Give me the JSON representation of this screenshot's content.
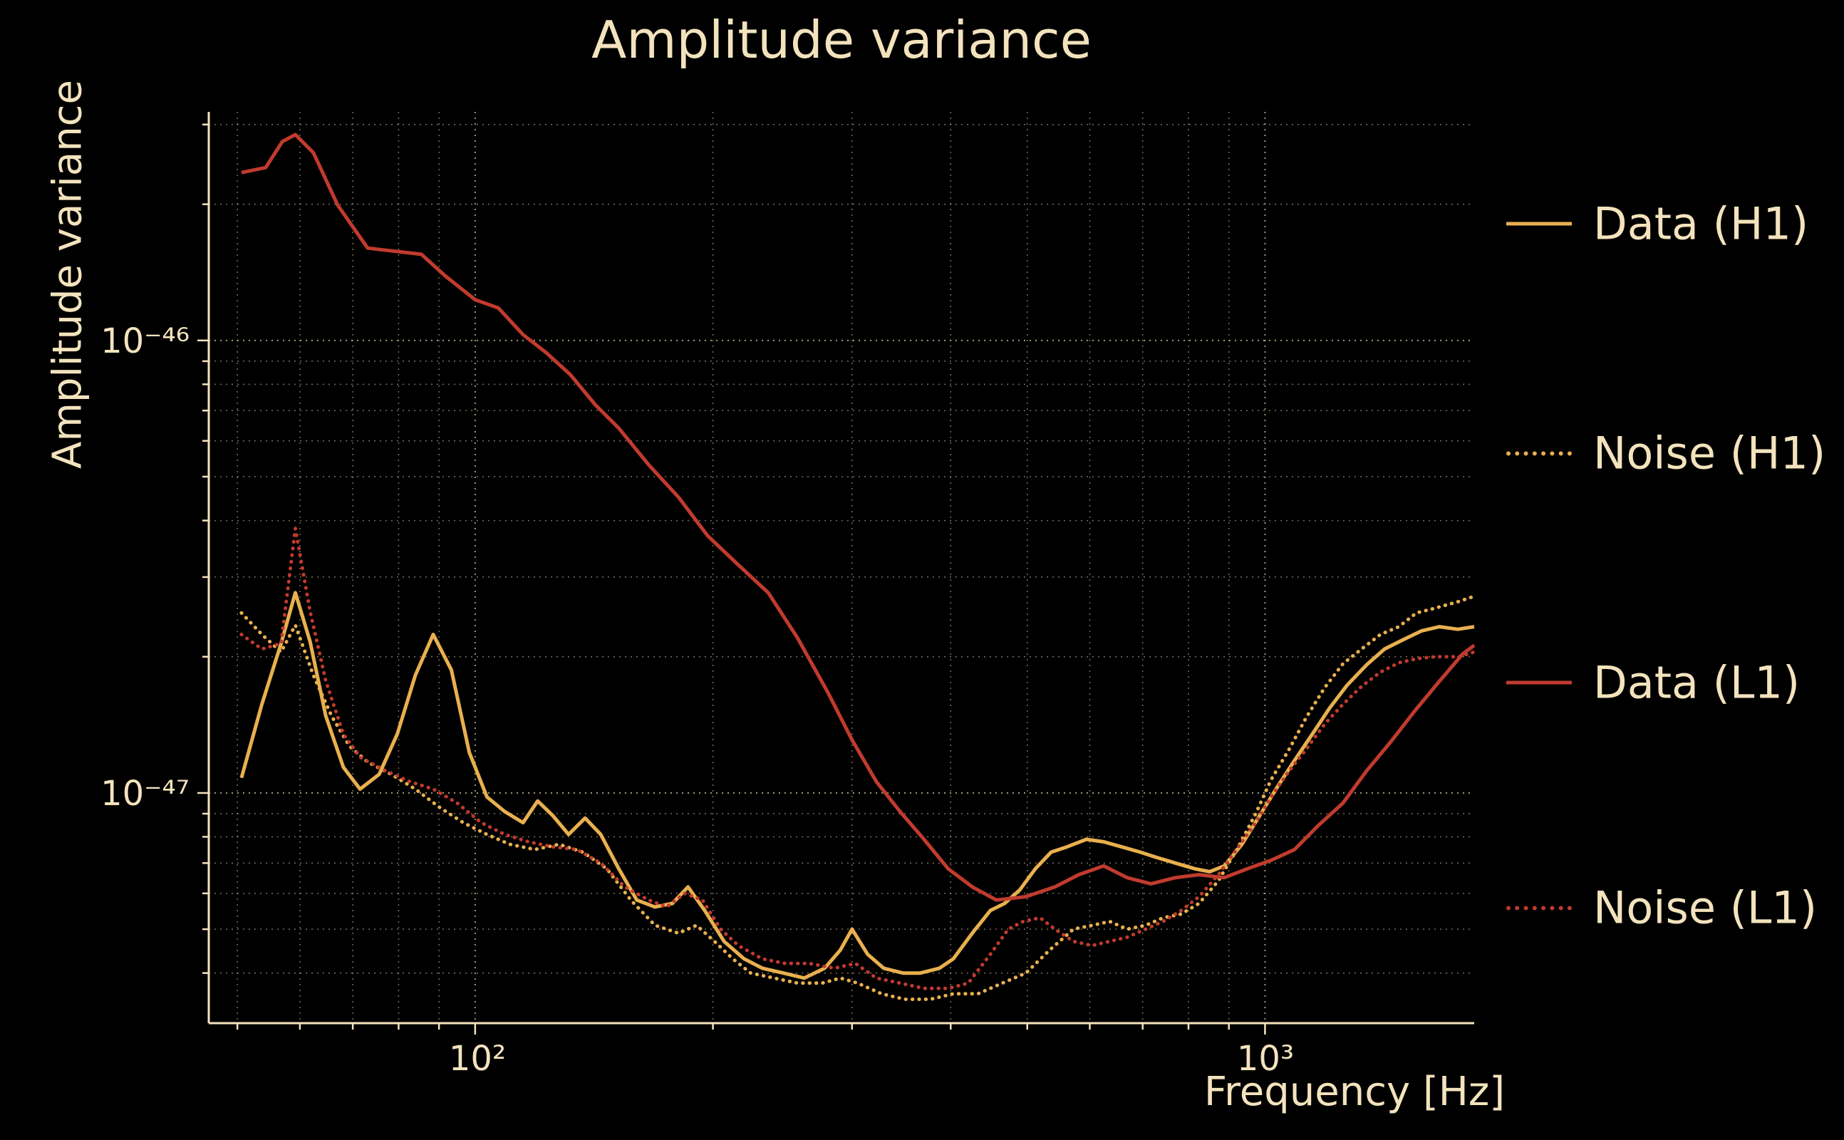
{
  "figure": {
    "background_color": "#000000",
    "text_color": "#f3e3bd"
  },
  "chart_data": {
    "type": "line",
    "title": "Amplitude variance",
    "xlabel": "Frequency [Hz]",
    "ylabel": "Amplitude variance",
    "xscale": "log",
    "yscale": "log",
    "xlim": [
      46,
      1840
    ],
    "ylim": [
      3.1e-48,
      3.2e-46
    ],
    "x_tick_labels": [
      "10²",
      "10³"
    ],
    "x_tick_values": [
      100,
      1000
    ],
    "y_tick_labels": [
      "10⁻⁴⁶",
      "10⁻⁴⁷"
    ],
    "y_tick_values": [
      1e-46,
      1e-47
    ],
    "grid": "major and minor, dotted",
    "legend_position": "right, outside axes, no frame",
    "colors": {
      "background": "#000000",
      "text": "#f3e3bd",
      "h1": "#e8b04e",
      "l1": "#c13b2e",
      "grid": "#d9cba4"
    },
    "series": [
      {
        "id": "data-h1",
        "name": "Data (H1)",
        "color": "#e8b04e",
        "line": "solid",
        "x": [
          50.6,
          53.7,
          56.8,
          59.2,
          61.8,
          64.7,
          68.1,
          71.5,
          75.6,
          79.7,
          84,
          88.5,
          93.3,
          98.3,
          103.5,
          109,
          115,
          120,
          125.5,
          131.3,
          137.8,
          144.2,
          152,
          160.2,
          168.9,
          177.7,
          186,
          195.3,
          206.6,
          219,
          231,
          245.6,
          261,
          277,
          290,
          300,
          314,
          329,
          348,
          366,
          387,
          403,
          426,
          449,
          468,
          489,
          512,
          536,
          561,
          594,
          625,
          659,
          695,
          730,
          770,
          815,
          851,
          888,
          935,
          984,
          1036,
          1090,
          1148,
          1207,
          1270,
          1345,
          1417,
          1495,
          1577,
          1663,
          1754,
          1840
        ],
        "y": [
          1.08e-47,
          1.57e-47,
          2.14e-47,
          2.77e-47,
          2.16e-47,
          1.48e-47,
          1.14e-47,
          1.02e-47,
          1.1e-47,
          1.35e-47,
          1.82e-47,
          2.24e-47,
          1.87e-47,
          1.23e-47,
          9.8e-48,
          9.1e-48,
          8.6e-48,
          9.6e-48,
          8.9e-48,
          8.1e-48,
          8.8e-48,
          8.1e-48,
          6.8e-48,
          5.8e-48,
          5.6e-48,
          5.7e-48,
          6.2e-48,
          5.5e-48,
          4.7e-48,
          4.3e-48,
          4.1e-48,
          4e-48,
          3.9e-48,
          4.1e-48,
          4.5e-48,
          5e-48,
          4.4e-48,
          4.1e-48,
          4e-48,
          4e-48,
          4.1e-48,
          4.3e-48,
          4.9e-48,
          5.5e-48,
          5.7e-48,
          6.1e-48,
          6.8e-48,
          7.4e-48,
          7.6e-48,
          7.9e-48,
          7.8e-48,
          7.6e-48,
          7.4e-48,
          7.2e-48,
          7e-48,
          6.8e-48,
          6.7e-48,
          6.9e-48,
          7.7e-48,
          8.9e-48,
          1.03e-47,
          1.18e-47,
          1.35e-47,
          1.54e-47,
          1.73e-47,
          1.92e-47,
          2.08e-47,
          2.18e-47,
          2.28e-47,
          2.33e-47,
          2.3e-47,
          2.33e-47
        ]
      },
      {
        "id": "noise-h1",
        "name": "Noise (H1)",
        "color": "#e8b04e",
        "line": "dotted",
        "x": [
          50.6,
          53.7,
          56.8,
          59.2,
          62.4,
          65.8,
          69.3,
          73.1,
          78.3,
          84,
          90.1,
          96.6,
          103.5,
          110.6,
          119,
          127.7,
          136.9,
          146.8,
          157.4,
          168.9,
          180.9,
          190.7,
          200.9,
          211.9,
          223.3,
          239,
          256,
          275,
          290,
          305,
          327,
          350,
          377,
          403,
          433,
          465,
          498,
          534,
          572,
          604,
          636,
          669,
          706,
          743,
          783,
          825,
          873,
          925,
          973,
          1018,
          1073,
          1128,
          1190,
          1255,
          1325,
          1400,
          1477,
          1555,
          1640,
          1760,
          1840
        ],
        "y": [
          2.5e-47,
          2.24e-47,
          2.05e-47,
          2.35e-47,
          1.82e-47,
          1.48e-47,
          1.27e-47,
          1.17e-47,
          1.1e-47,
          1.02e-47,
          9.3e-48,
          8.6e-48,
          8.1e-48,
          7.7e-48,
          7.5e-48,
          7.7e-48,
          7.4e-48,
          6.8e-48,
          5.8e-48,
          5.1e-48,
          4.9e-48,
          5.1e-48,
          4.7e-48,
          4.3e-48,
          4e-48,
          3.9e-48,
          3.8e-48,
          3.8e-48,
          3.9e-48,
          3.8e-48,
          3.6e-48,
          3.5e-48,
          3.5e-48,
          3.6e-48,
          3.6e-48,
          3.8e-48,
          4e-48,
          4.5e-48,
          5e-48,
          5.1e-48,
          5.2e-48,
          5e-48,
          5.1e-48,
          5.3e-48,
          5.4e-48,
          5.7e-48,
          6.4e-48,
          7.6e-48,
          9e-48,
          1.07e-47,
          1.25e-47,
          1.47e-47,
          1.71e-47,
          1.93e-47,
          2.08e-47,
          2.24e-47,
          2.33e-47,
          2.5e-47,
          2.56e-47,
          2.65e-47,
          2.72e-47
        ]
      },
      {
        "id": "data-l1",
        "name": "Data (L1)",
        "color": "#c13b2e",
        "line": "solid",
        "x": [
          50.6,
          54.3,
          57,
          59.2,
          62.4,
          67,
          73.1,
          77.8,
          85.5,
          91.6,
          100,
          107,
          115,
          123,
          132,
          142,
          152,
          166,
          181,
          197,
          215,
          235,
          256,
          280,
          300,
          322,
          345,
          370,
          397,
          426,
          457,
          498,
          542,
          581,
          625,
          669,
          717,
          770,
          825,
          888,
          950,
          1018,
          1090,
          1170,
          1255,
          1345,
          1444,
          1548,
          1660,
          1780,
          1840
        ],
        "y": [
          2.35e-46,
          2.41e-46,
          2.75e-46,
          2.85e-46,
          2.6e-46,
          1.99e-46,
          1.6e-46,
          1.58e-46,
          1.55e-46,
          1.39e-46,
          1.23e-46,
          1.18e-46,
          1.03e-46,
          9.4e-47,
          8.4e-47,
          7.2e-47,
          6.4e-47,
          5.3e-47,
          4.5e-47,
          3.7e-47,
          3.2e-47,
          2.77e-47,
          2.2e-47,
          1.66e-47,
          1.31e-47,
          1.06e-47,
          9.1e-48,
          7.9e-48,
          6.8e-48,
          6.2e-48,
          5.8e-48,
          5.9e-48,
          6.2e-48,
          6.6e-48,
          6.9e-48,
          6.5e-48,
          6.3e-48,
          6.5e-48,
          6.6e-48,
          6.5e-48,
          6.8e-48,
          7.1e-48,
          7.5e-48,
          8.5e-48,
          9.5e-48,
          1.12e-47,
          1.3e-47,
          1.52e-47,
          1.76e-47,
          2.03e-47,
          2.12e-47
        ]
      },
      {
        "id": "noise-l1",
        "name": "Noise (L1)",
        "color": "#c13b2e",
        "line": "dotted",
        "x": [
          50.6,
          53.7,
          56.8,
          59.2,
          61.8,
          64.7,
          68.1,
          71.5,
          77,
          82.6,
          88.5,
          94.9,
          101.8,
          109,
          116.9,
          125.5,
          134.5,
          144.2,
          154.7,
          165.8,
          174.8,
          184.2,
          194,
          204.5,
          215.4,
          231,
          247,
          265,
          285,
          303,
          322,
          345,
          370,
          397,
          421,
          449,
          473,
          494,
          519,
          542,
          572,
          604,
          636,
          669,
          706,
          743,
          783,
          825,
          873,
          925,
          973,
          1018,
          1073,
          1128,
          1190,
          1255,
          1325,
          1400,
          1477,
          1555,
          1640,
          1760,
          1840
        ],
        "y": [
          2.24e-47,
          2.08e-47,
          2.14e-47,
          3.84e-47,
          2.52e-47,
          1.77e-47,
          1.35e-47,
          1.2e-47,
          1.12e-47,
          1.06e-47,
          1.02e-47,
          9.5e-48,
          8.6e-48,
          8.1e-48,
          7.8e-48,
          7.6e-48,
          7.5e-48,
          7e-48,
          6.2e-48,
          5.8e-48,
          5.6e-48,
          6e-48,
          5.8e-48,
          5e-48,
          4.6e-48,
          4.3e-48,
          4.2e-48,
          4.2e-48,
          4.1e-48,
          4.2e-48,
          3.9e-48,
          3.8e-48,
          3.7e-48,
          3.7e-48,
          3.8e-48,
          4.4e-48,
          5e-48,
          5.2e-48,
          5.3e-48,
          5e-48,
          4.7e-48,
          4.6e-48,
          4.7e-48,
          4.8e-48,
          5e-48,
          5.2e-48,
          5.5e-48,
          5.9e-48,
          6.6e-48,
          7.6e-48,
          8.6e-48,
          9.8e-48,
          1.12e-47,
          1.25e-47,
          1.42e-47,
          1.57e-47,
          1.72e-47,
          1.85e-47,
          1.94e-47,
          1.98e-47,
          2e-47,
          2e-47,
          2.05e-47
        ]
      }
    ]
  }
}
